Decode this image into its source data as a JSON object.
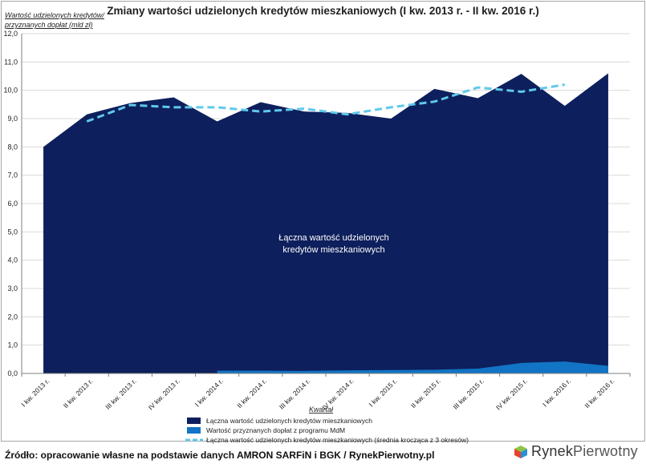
{
  "source_text": "Źródło: opracowanie własne na podstawie danych AMRON SARFiN i BGK / RynekPierwotny.pl",
  "logo": {
    "text_part1": "Rynek",
    "text_part2": "Pierwotny"
  },
  "colors": {
    "total": "#0d1f5c",
    "mdm": "#1274c4",
    "avg": "#5fc9ec",
    "grid": "#d9d9d9",
    "axis": "#7f7f7f"
  },
  "chart_data": {
    "type": "area",
    "title": "Zmiany wartości udzielonych kredytów mieszkaniowych (I kw. 2013 r. - II kw. 2016 r.)",
    "ylabel_line1": "Wartość udzielonych kredytów/",
    "ylabel_line2": "przyznanych dopłat (mld zł)",
    "xlabel": "Kwartał",
    "ylim": [
      0,
      12
    ],
    "yticks": [
      "0,0",
      "1,0",
      "2,0",
      "3,0",
      "4,0",
      "5,0",
      "6,0",
      "7,0",
      "8,0",
      "9,0",
      "10,0",
      "11,0",
      "12,0"
    ],
    "categories": [
      "I kw. 2013 r.",
      "II kw. 2013 r.",
      "III kw. 2013 r.",
      "IV kw. 2013 r.",
      "I kw. 2014 r.",
      "II kw. 2014 r.",
      "III kw. 2014 r.",
      "IV kw. 2014 r.",
      "I kw. 2015 r.",
      "II kw. 2015 r.",
      "III kw. 2015 r.",
      "IV kw. 2015 r.",
      "I kw. 2016 r.",
      "II kw. 2016 r."
    ],
    "series": [
      {
        "name": "Łączna wartość udzielonych kredytów mieszkaniowych",
        "style": "area",
        "values": [
          8.0,
          9.15,
          9.55,
          9.75,
          8.9,
          9.58,
          9.25,
          9.2,
          9.0,
          10.05,
          9.72,
          10.58,
          9.45,
          10.6
        ]
      },
      {
        "name": "Wartość przyznanych dopłat z programu MdM",
        "style": "area",
        "values": [
          null,
          null,
          null,
          null,
          0.1,
          0.1,
          0.09,
          0.11,
          0.12,
          0.13,
          0.17,
          0.37,
          0.42,
          0.27
        ]
      },
      {
        "name": "Łączna wartość udzielonych kredytów mieszkaniowych (średnia krocząca z 3 okresów)",
        "style": "dashed-line",
        "values": [
          null,
          8.9,
          9.48,
          9.4,
          9.4,
          9.25,
          9.35,
          9.15,
          9.4,
          9.6,
          10.1,
          9.95,
          10.2,
          null
        ]
      }
    ],
    "annotation_line1": "Łączna wartość udzielonych",
    "annotation_line2": "kredytów mieszkaniowych"
  }
}
